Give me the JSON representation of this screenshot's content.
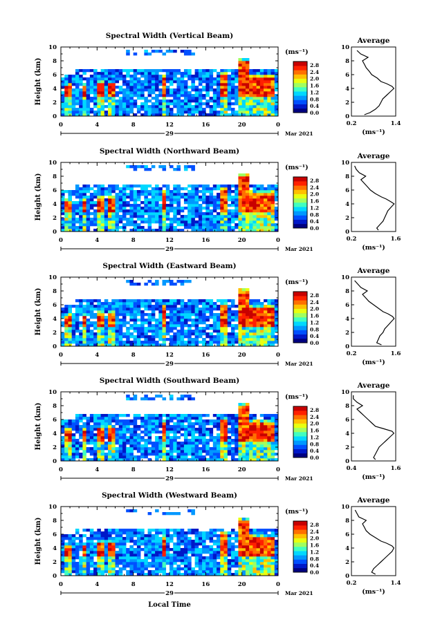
{
  "figure": {
    "xlabel": "Local Time",
    "unit_label": "(ms⁻¹)",
    "avg_title": "Average",
    "date_label": "Mar 2021",
    "colormap": [
      "#000080",
      "#0018c8",
      "#0050ff",
      "#0098ff",
      "#00d8ff",
      "#40ffc0",
      "#a0ff60",
      "#e8ff10",
      "#ffc000",
      "#ff7000",
      "#ff2000",
      "#c80000"
    ]
  },
  "chart_data": [
    {
      "type": "heatmap",
      "title": "Spectral Width (Vertical Beam)",
      "ylabel": "Height (km)",
      "x_ticks": [
        "0",
        "4",
        "8",
        "12",
        "16",
        "20",
        "0"
      ],
      "x_range": [
        0,
        24
      ],
      "day_label": "29",
      "y_ticks": [
        "0",
        "2",
        "4",
        "6",
        "8",
        "10"
      ],
      "y_range": [
        0,
        10
      ],
      "colorbar_ticks": [
        "0.0",
        "0.4",
        "0.8",
        "1.2",
        "1.6",
        "2.0",
        "2.4",
        "2.8"
      ],
      "colorbar_range": [
        0,
        3.0
      ],
      "avg_profile": {
        "xlabel": "(ms⁻¹)",
        "x_ticks": [
          "0.2",
          "1.4"
        ],
        "xlim": [
          0.2,
          1.4
        ],
        "heights": [
          0.2,
          0.5,
          1,
          1.5,
          2,
          2.5,
          3,
          3.5,
          4,
          4.3,
          4.7,
          5,
          5.5,
          6,
          6.5,
          7,
          7.5,
          8,
          8.5,
          9,
          9.5
        ],
        "values": [
          0.55,
          0.7,
          0.85,
          0.95,
          1.0,
          1.05,
          1.15,
          1.25,
          1.35,
          1.3,
          1.15,
          1.0,
          0.9,
          0.75,
          0.68,
          0.6,
          0.55,
          0.5,
          0.65,
          0.45,
          0.35
        ]
      }
    },
    {
      "type": "heatmap",
      "title": "Spectral Width (Northward Beam)",
      "ylabel": "Height (km)",
      "x_ticks": [
        "0",
        "4",
        "8",
        "12",
        "16",
        "20",
        "0"
      ],
      "x_range": [
        0,
        24
      ],
      "day_label": "29",
      "y_ticks": [
        "0",
        "2",
        "4",
        "6",
        "8",
        "10"
      ],
      "y_range": [
        0,
        10
      ],
      "colorbar_ticks": [
        "0.0",
        "0.4",
        "0.8",
        "1.2",
        "1.6",
        "2.0",
        "2.4",
        "2.8"
      ],
      "colorbar_range": [
        0,
        3.0
      ],
      "avg_profile": {
        "xlabel": "(ms⁻¹)",
        "x_ticks": [
          "0.2",
          "1.6"
        ],
        "xlim": [
          0.2,
          1.6
        ],
        "heights": [
          0.2,
          0.5,
          1,
          1.5,
          2,
          2.5,
          3,
          3.5,
          4,
          4.3,
          4.7,
          5,
          5.5,
          6,
          6.5,
          7,
          7.5,
          8,
          8.5,
          9,
          9.5
        ],
        "values": [
          1.05,
          1.0,
          1.1,
          1.2,
          1.25,
          1.3,
          1.35,
          1.45,
          1.55,
          1.45,
          1.3,
          1.15,
          0.95,
          0.8,
          0.7,
          0.6,
          0.5,
          0.65,
          0.45,
          0.35,
          0.3
        ]
      }
    },
    {
      "type": "heatmap",
      "title": "Spectral Width (Eastward Beam)",
      "ylabel": "Height (km)",
      "x_ticks": [
        "0",
        "4",
        "8",
        "12",
        "16",
        "20",
        "0"
      ],
      "x_range": [
        0,
        24
      ],
      "day_label": "29",
      "y_ticks": [
        "0",
        "2",
        "4",
        "6",
        "8",
        "10"
      ],
      "y_range": [
        0,
        10
      ],
      "colorbar_ticks": [
        "0.0",
        "0.4",
        "0.8",
        "1.2",
        "1.6",
        "2.0",
        "2.4",
        "2.8"
      ],
      "colorbar_range": [
        0,
        3.0
      ],
      "avg_profile": {
        "xlabel": "(ms⁻¹)",
        "x_ticks": [
          "0.2",
          "1.6"
        ],
        "xlim": [
          0.2,
          1.6
        ],
        "heights": [
          0.2,
          0.5,
          1,
          1.5,
          2,
          2.5,
          3,
          3.5,
          4,
          4.3,
          4.7,
          5,
          5.5,
          6,
          6.5,
          7,
          7.5,
          8,
          8.5,
          9,
          9.5
        ],
        "values": [
          1.15,
          1.0,
          1.05,
          1.1,
          1.2,
          1.25,
          1.35,
          1.45,
          1.55,
          1.5,
          1.35,
          1.2,
          1.05,
          0.9,
          0.75,
          0.65,
          0.55,
          0.7,
          0.5,
          0.4,
          0.3
        ]
      }
    },
    {
      "type": "heatmap",
      "title": "Spectral Width (Southward Beam)",
      "ylabel": "Height (km)",
      "x_ticks": [
        "0",
        "4",
        "8",
        "12",
        "16",
        "20",
        "0"
      ],
      "x_range": [
        0,
        24
      ],
      "day_label": "29",
      "y_ticks": [
        "0",
        "2",
        "4",
        "6",
        "8",
        "10"
      ],
      "y_range": [
        0,
        10
      ],
      "colorbar_ticks": [
        "0.0",
        "0.4",
        "0.8",
        "1.2",
        "1.6",
        "2.0",
        "2.4",
        "2.8"
      ],
      "colorbar_range": [
        0,
        3.0
      ],
      "avg_profile": {
        "xlabel": "(ms⁻¹)",
        "x_ticks": [
          "0.4",
          "1.6"
        ],
        "xlim": [
          0.4,
          1.6
        ],
        "heights": [
          0.2,
          0.5,
          1,
          1.5,
          2,
          2.5,
          3,
          3.5,
          4,
          4.3,
          4.7,
          5,
          5.5,
          6,
          6.5,
          7,
          7.5,
          8,
          8.5,
          9,
          9.5
        ],
        "values": [
          1.05,
          1.0,
          1.05,
          1.1,
          1.15,
          1.25,
          1.35,
          1.45,
          1.55,
          1.5,
          1.25,
          1.05,
          0.95,
          0.85,
          0.75,
          0.65,
          0.55,
          0.7,
          0.55,
          0.45,
          0.45
        ]
      }
    },
    {
      "type": "heatmap",
      "title": "Spectral Width (Westward Beam)",
      "ylabel": "Height (km)",
      "x_ticks": [
        "0",
        "4",
        "8",
        "12",
        "16",
        "20",
        "0"
      ],
      "x_range": [
        0,
        24
      ],
      "day_label": "29",
      "y_ticks": [
        "0",
        "2",
        "4",
        "6",
        "8",
        "10"
      ],
      "y_range": [
        0,
        10
      ],
      "colorbar_ticks": [
        "0.0",
        "0.4",
        "0.8",
        "1.2",
        "1.6",
        "2.0",
        "2.4",
        "2.8"
      ],
      "colorbar_range": [
        0,
        3.0
      ],
      "avg_profile": {
        "xlabel": "(ms⁻¹)",
        "x_ticks": [
          "0.2",
          "1.4"
        ],
        "xlim": [
          0.2,
          1.4
        ],
        "heights": [
          0.2,
          0.5,
          1,
          1.5,
          2,
          2.5,
          3,
          3.5,
          4,
          4.3,
          4.7,
          5,
          5.5,
          6,
          6.5,
          7,
          7.5,
          8,
          8.5,
          9,
          9.5
        ],
        "values": [
          0.85,
          0.75,
          0.8,
          0.9,
          1.0,
          1.1,
          1.2,
          1.3,
          1.35,
          1.3,
          1.15,
          1.0,
          0.85,
          0.7,
          0.6,
          0.55,
          0.5,
          0.6,
          0.4,
          0.35,
          0.3
        ]
      }
    }
  ]
}
